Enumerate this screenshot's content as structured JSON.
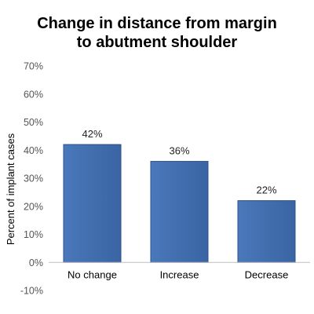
{
  "chart_data": {
    "type": "bar",
    "title_lines": [
      "Change in distance from margin",
      "to abutment shoulder"
    ],
    "ylabel": "Percent of implant cases",
    "categories": [
      "No change",
      "Increase",
      "Decrease"
    ],
    "values": [
      42,
      36,
      22
    ],
    "data_labels": [
      "42%",
      "36%",
      "22%"
    ],
    "ylim": [
      -10,
      70
    ],
    "yticks": [
      70,
      60,
      50,
      40,
      30,
      20,
      10,
      0,
      -10
    ],
    "ytick_labels": [
      "70%",
      "60%",
      "50%",
      "40%",
      "30%",
      "20%",
      "10%",
      "0%",
      "-10%"
    ],
    "grid": false,
    "legend": "none",
    "bar_color": "#3F6CAE",
    "bar_color_dark": "#2E528A",
    "axis_color": "#BFBFBF"
  }
}
